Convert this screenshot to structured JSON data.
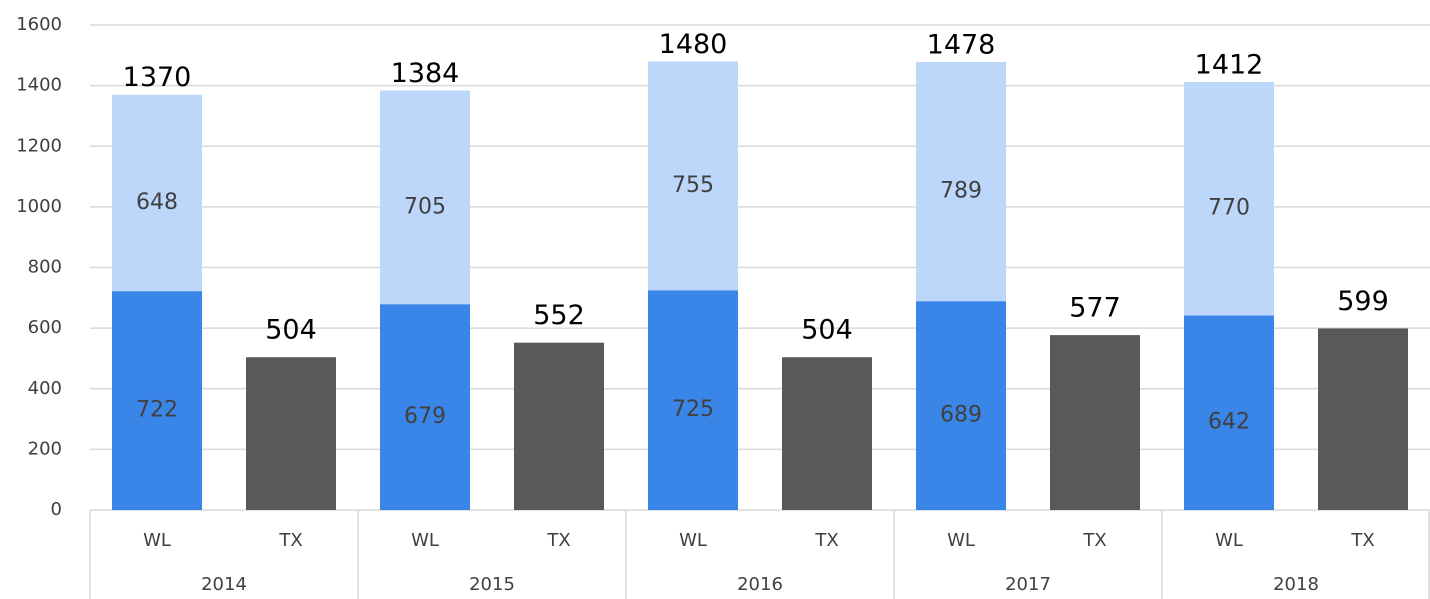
{
  "chart_data": {
    "type": "stacked-bar",
    "categories": [
      "WL",
      "TX",
      "WL",
      "TX",
      "WL",
      "TX",
      "WL",
      "TX",
      "WL",
      "TX"
    ],
    "groups": [
      "2014",
      "2015",
      "2016",
      "2017",
      "2018"
    ],
    "series": [
      {
        "color": "#3a86e8",
        "values": [
          722,
          null,
          679,
          null,
          725,
          null,
          689,
          null,
          642,
          null
        ]
      },
      {
        "color": "#bdd7fb",
        "values": [
          648,
          null,
          705,
          null,
          755,
          null,
          789,
          null,
          770,
          null
        ]
      },
      {
        "color": "#595959",
        "values": [
          null,
          504,
          null,
          552,
          null,
          504,
          null,
          577,
          null,
          599
        ]
      }
    ],
    "totals": [
      1370,
      null,
      1384,
      null,
      1480,
      null,
      1478,
      null,
      1412,
      null
    ],
    "ylim": [
      0,
      1600
    ],
    "yticks": [
      0,
      200,
      400,
      600,
      800,
      1000,
      1200,
      1400,
      1600
    ],
    "grid": true
  }
}
